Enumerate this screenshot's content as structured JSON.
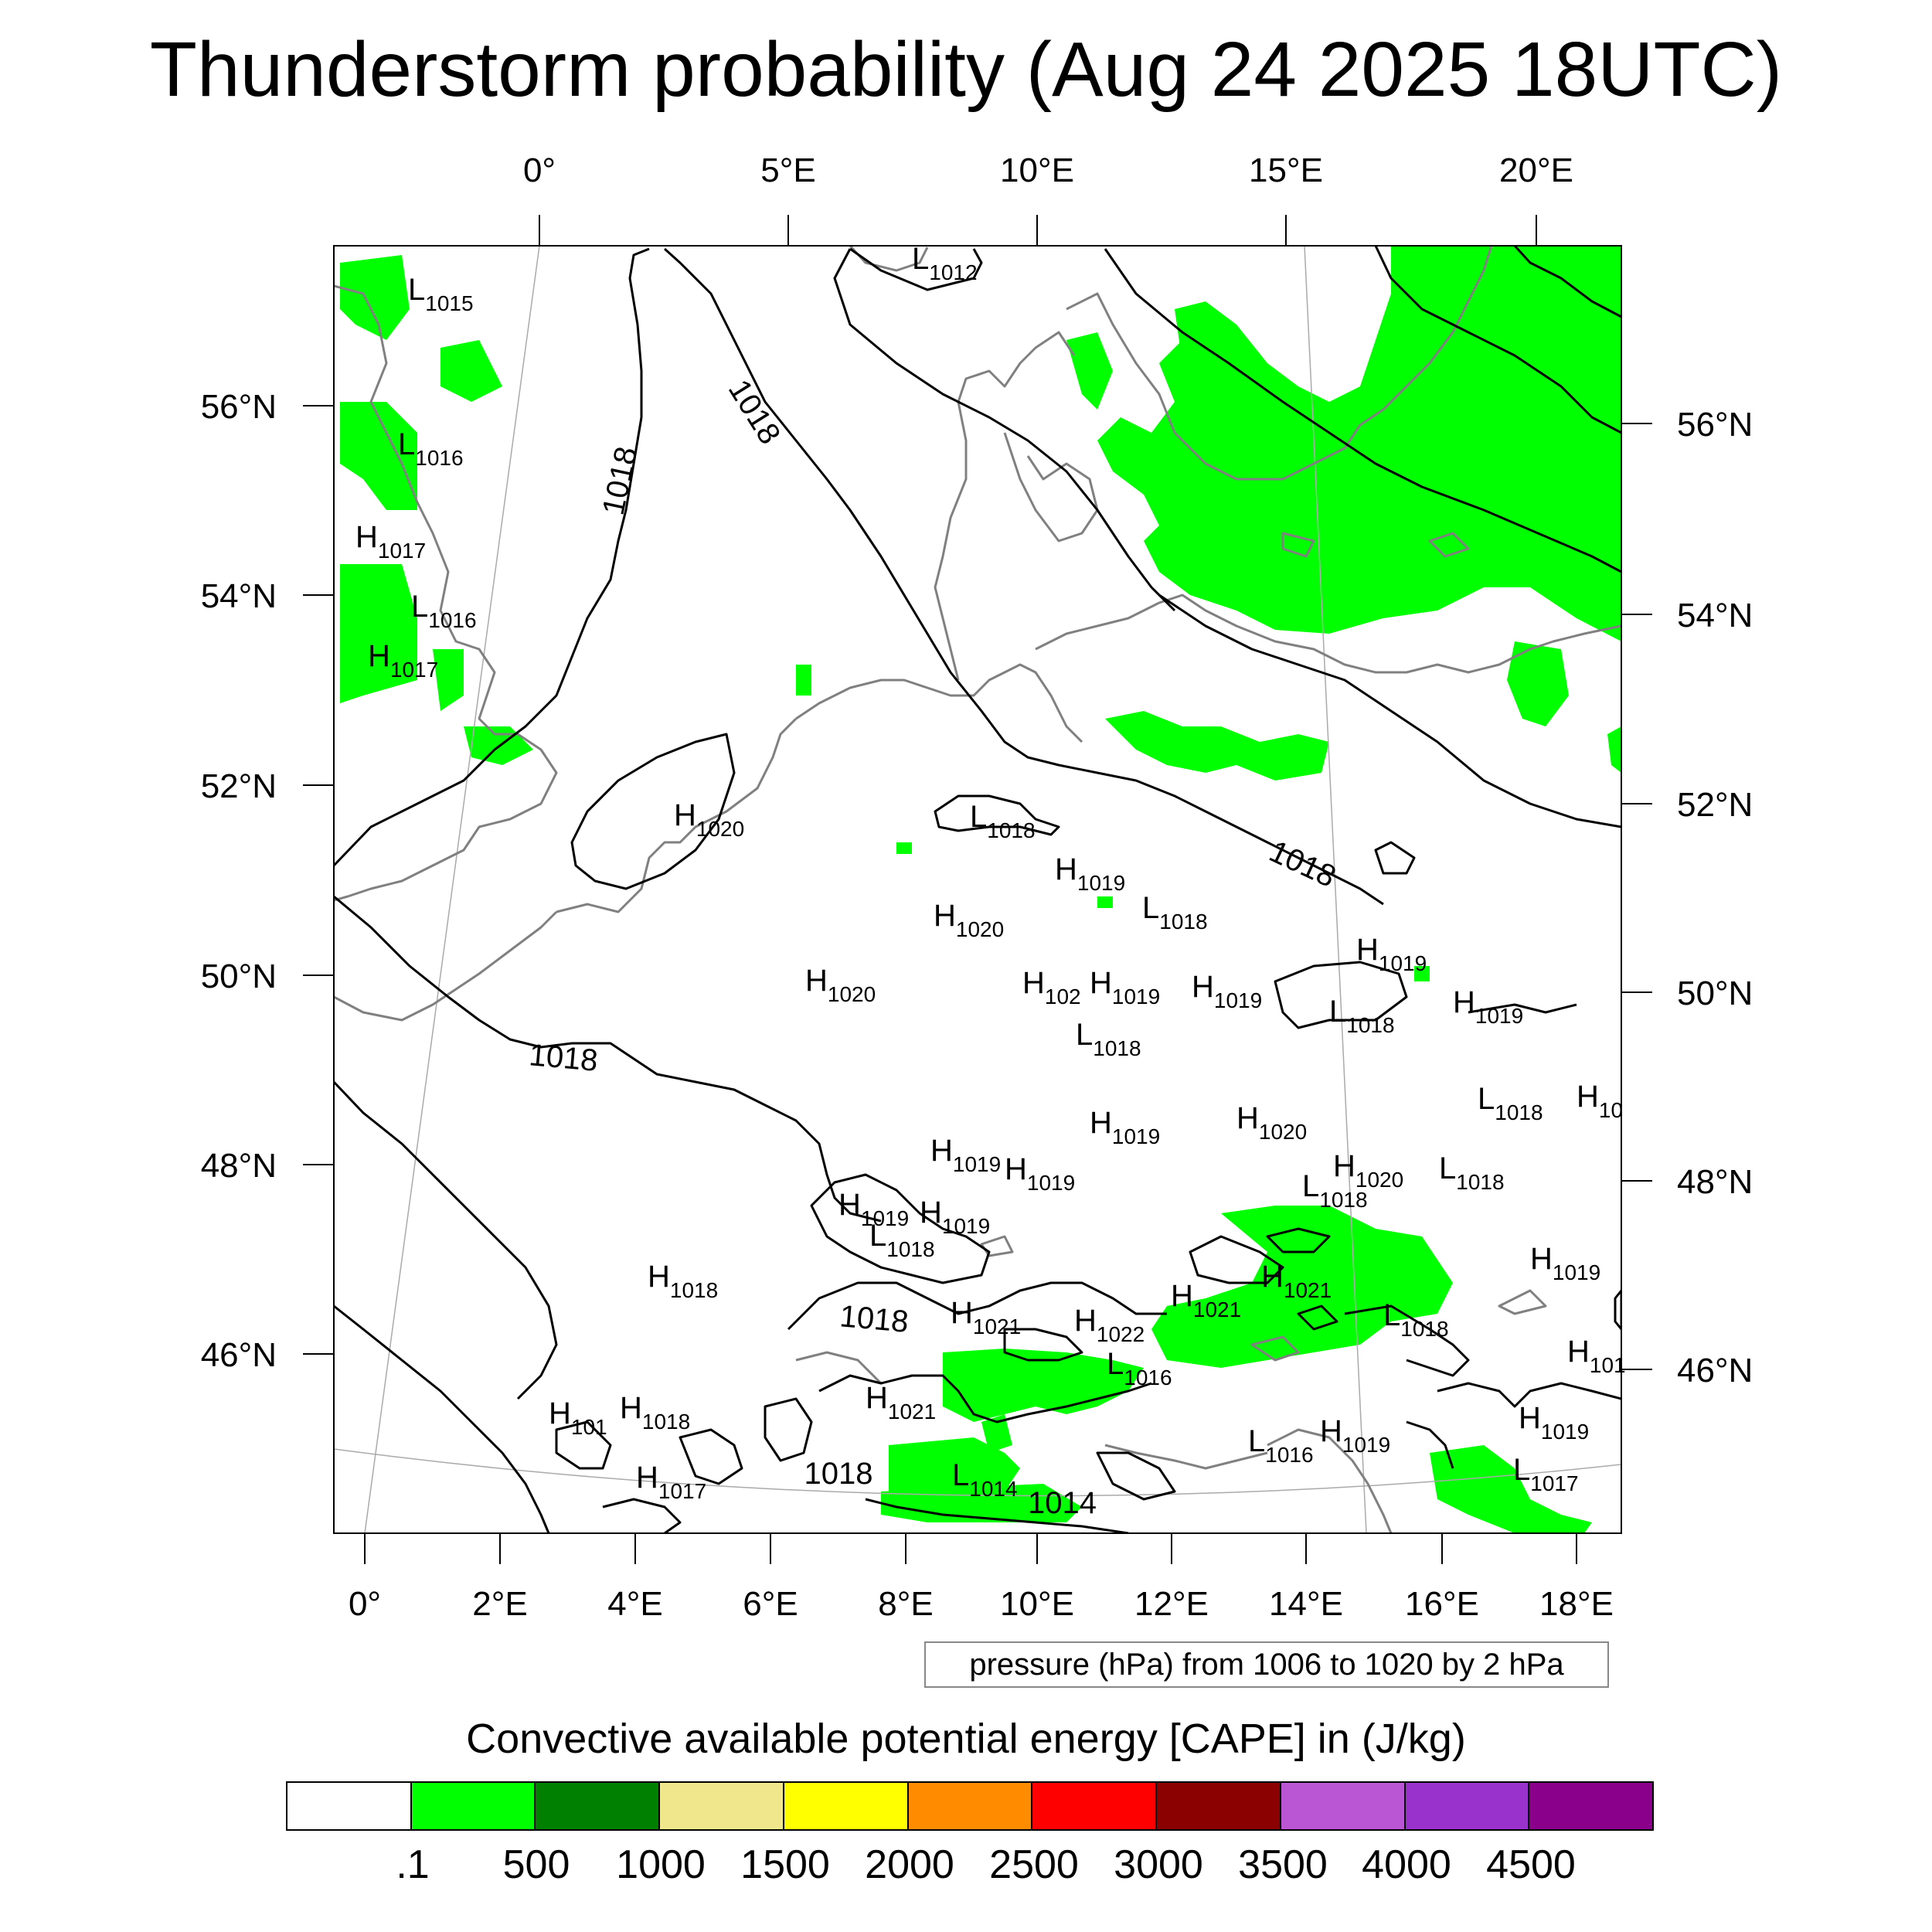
{
  "title": "Thunderstorm probability (Aug 24 2025 18UTC)",
  "top_lon_labels": [
    "0°",
    "5°E",
    "10°E",
    "15°E",
    "20°E"
  ],
  "bottom_lon_labels": [
    "0°",
    "2°E",
    "4°E",
    "6°E",
    "8°E",
    "10°E",
    "12°E",
    "14°E",
    "16°E",
    "18°E"
  ],
  "left_lat_labels": [
    "56°N",
    "54°N",
    "52°N",
    "50°N",
    "48°N",
    "46°N"
  ],
  "right_lat_labels": [
    "56°N",
    "54°N",
    "52°N",
    "50°N",
    "48°N",
    "46°N"
  ],
  "isobar_labels": [
    "1018",
    "1018",
    "1018",
    "1018",
    "1018",
    "1018"
  ],
  "pressure_centers": [
    {
      "t": "L",
      "v": "1015"
    },
    {
      "t": "L",
      "v": "1016"
    },
    {
      "t": "H",
      "v": "1017"
    },
    {
      "t": "L",
      "v": "1016"
    },
    {
      "t": "H",
      "v": "1017"
    },
    {
      "t": "L",
      "v": "1012"
    },
    {
      "t": "H",
      "v": "1020"
    },
    {
      "t": "L",
      "v": "1018"
    },
    {
      "t": "H",
      "v": "1019"
    },
    {
      "t": "H",
      "v": "1020"
    },
    {
      "t": "L",
      "v": "1018"
    },
    {
      "t": "H",
      "v": "1020"
    },
    {
      "t": "H",
      "v": "102"
    },
    {
      "t": "H",
      "v": "1019"
    },
    {
      "t": "H",
      "v": "1019"
    },
    {
      "t": "L",
      "v": "1018"
    },
    {
      "t": "H",
      "v": "1019"
    },
    {
      "t": "L",
      "v": "1018"
    },
    {
      "t": "H",
      "v": "1019"
    },
    {
      "t": "L",
      "v": "1018"
    },
    {
      "t": "H",
      "v": "1019"
    },
    {
      "t": "H",
      "v": "1020"
    },
    {
      "t": "H",
      "v": "1019"
    },
    {
      "t": "H",
      "v": "1019"
    },
    {
      "t": "L",
      "v": "1018"
    },
    {
      "t": "H",
      "v": "1020"
    },
    {
      "t": "L",
      "v": "1018"
    },
    {
      "t": "H",
      "v": "1019"
    },
    {
      "t": "H",
      "v": "1019"
    },
    {
      "t": "L",
      "v": "1018"
    },
    {
      "t": "H",
      "v": "1018"
    },
    {
      "t": "H",
      "v": "1021"
    },
    {
      "t": "H",
      "v": "1021"
    },
    {
      "t": "H",
      "v": "1021"
    },
    {
      "t": "H",
      "v": "1022"
    },
    {
      "t": "L",
      "v": "1016"
    },
    {
      "t": "L",
      "v": "1018"
    },
    {
      "t": "H",
      "v": "1019"
    },
    {
      "t": "H",
      "v": "1021"
    },
    {
      "t": "H",
      "v": "101"
    },
    {
      "t": "H",
      "v": "1018"
    },
    {
      "t": "H",
      "v": "1017"
    },
    {
      "t": "L",
      "v": "1014"
    },
    {
      "t": "L",
      "v": "1016"
    },
    {
      "t": "H",
      "v": "1019"
    },
    {
      "t": "H",
      "v": "1019"
    },
    {
      "t": "L",
      "v": "1017"
    },
    {
      "t": "H",
      "v": "101"
    },
    {
      "t": "H",
      "v": "10"
    }
  ],
  "extra_value_label": "1014",
  "pressure_note": "pressure (hPa) from 1006 to 1020 by 2 hPa",
  "legend": {
    "title": "Convective available potential energy [CAPE] in (J/kg)",
    "colors": [
      "#ffffff",
      "#00ff00",
      "#008000",
      "#f0e68c",
      "#ffff00",
      "#ff8c00",
      "#ff0000",
      "#8b0000",
      "#ba55d3",
      "#9932cc",
      "#8b008b"
    ],
    "labels": [
      ".1",
      "500",
      "1000",
      "1500",
      "2000",
      "2500",
      "3000",
      "3500",
      "4000",
      "4500"
    ]
  },
  "colors": {
    "cape_fill": "#00ff00",
    "coastline": "#808080",
    "isobar": "#000000",
    "graticule": "#aaaaaa"
  }
}
